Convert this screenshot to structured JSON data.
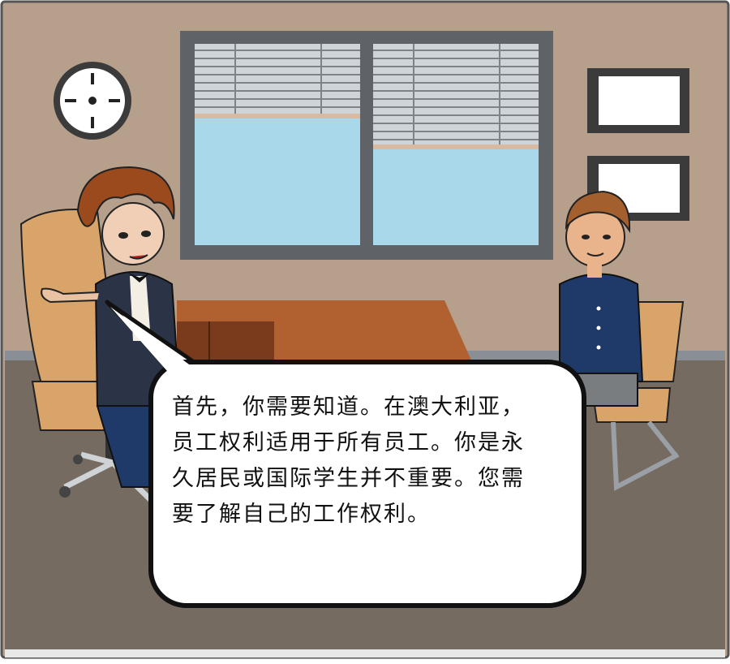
{
  "scene": {
    "colors": {
      "wall": "#b6a08c",
      "floor": "#756b61",
      "window_glass": "#a9d8ea",
      "window_frame": "#5f6266",
      "desk": "#b0612f",
      "chair": "#d9a46a",
      "jacket_left": "#2b3347",
      "shirt_right": "#1f3a68",
      "bubble_fill": "#ffffff",
      "bubble_outline": "#111111"
    },
    "icons": [
      "wall-clock-icon",
      "window-blinds-icon",
      "picture-frame-icon"
    ]
  },
  "speech_bubble": {
    "lines": [
      "首先，你需要知道。在澳大利亚，",
      "员工权利适用于所有员工。你是永",
      "久居民或国际学生并不重要。您需",
      "要了解自己的工作权利。"
    ]
  }
}
